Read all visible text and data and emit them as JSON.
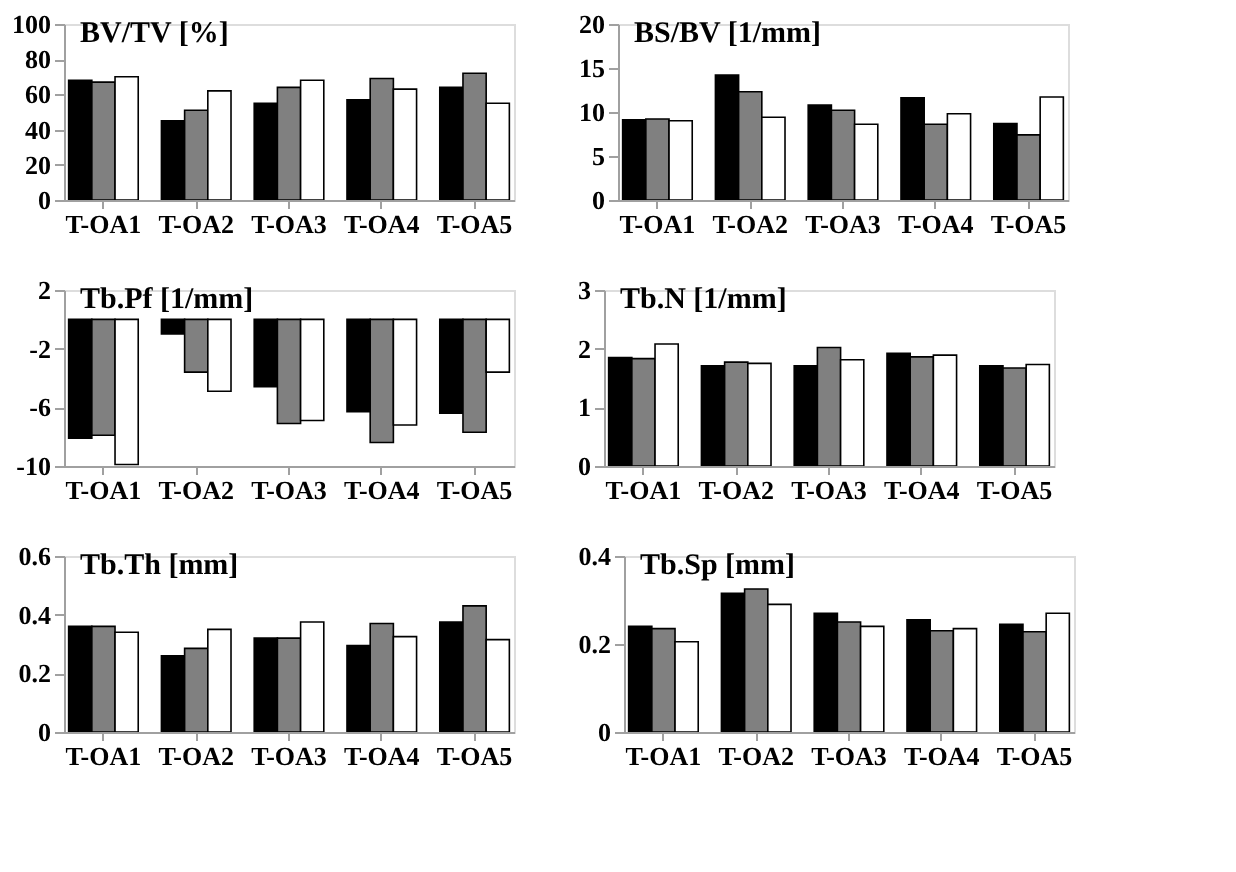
{
  "chart_data": [
    {
      "type": "bar",
      "title": "BV/TV [%]",
      "categories": [
        "T-OA1",
        "T-OA2",
        "T-OA3",
        "T-OA4",
        "T-OA5"
      ],
      "ylim": [
        0,
        100
      ],
      "yticks": [
        0,
        20,
        40,
        60,
        80,
        100
      ],
      "grid": false,
      "legend": false,
      "series": [
        {
          "color": "#000000",
          "values": [
            68,
            45,
            55,
            57,
            64
          ]
        },
        {
          "color": "#808080",
          "values": [
            67,
            51,
            64,
            69,
            72
          ]
        },
        {
          "color": "#ffffff",
          "values": [
            70,
            62,
            68,
            63,
            55
          ]
        }
      ]
    },
    {
      "type": "bar",
      "title": "BS/BV [1/mm]",
      "categories": [
        "T-OA1",
        "T-OA2",
        "T-OA3",
        "T-OA4",
        "T-OA5"
      ],
      "ylim": [
        0,
        20
      ],
      "yticks": [
        0,
        5,
        10,
        15,
        20
      ],
      "grid": false,
      "legend": false,
      "series": [
        {
          "color": "#000000",
          "values": [
            9.1,
            14.2,
            10.8,
            11.6,
            8.7
          ]
        },
        {
          "color": "#808080",
          "values": [
            9.2,
            12.3,
            10.2,
            8.6,
            7.4
          ]
        },
        {
          "color": "#ffffff",
          "values": [
            9.0,
            9.4,
            8.6,
            9.8,
            11.7
          ]
        }
      ]
    },
    {
      "type": "bar",
      "title": "Tb.Pf [1/mm]",
      "categories": [
        "T-OA1",
        "T-OA2",
        "T-OA3",
        "T-OA4",
        "T-OA5"
      ],
      "ylim": [
        -10,
        2
      ],
      "yticks": [
        -10,
        -6,
        -2,
        2
      ],
      "grid": false,
      "legend": false,
      "series": [
        {
          "color": "#000000",
          "values": [
            -8.1,
            -1.0,
            -4.6,
            -6.3,
            -6.4
          ]
        },
        {
          "color": "#808080",
          "values": [
            -7.9,
            -3.6,
            -7.1,
            -8.4,
            -7.7
          ]
        },
        {
          "color": "#ffffff",
          "values": [
            -9.9,
            -4.9,
            -6.9,
            -7.2,
            -3.6
          ]
        }
      ]
    },
    {
      "type": "bar",
      "title": "Tb.N [1/mm]",
      "categories": [
        "T-OA1",
        "T-OA2",
        "T-OA3",
        "T-OA4",
        "T-OA5"
      ],
      "ylim": [
        0,
        3
      ],
      "yticks": [
        0,
        1,
        2,
        3
      ],
      "grid": false,
      "legend": false,
      "series": [
        {
          "color": "#000000",
          "values": [
            1.85,
            1.71,
            1.71,
            1.92,
            1.71
          ]
        },
        {
          "color": "#808080",
          "values": [
            1.83,
            1.77,
            2.02,
            1.86,
            1.67
          ]
        },
        {
          "color": "#ffffff",
          "values": [
            2.08,
            1.75,
            1.81,
            1.89,
            1.73
          ]
        }
      ]
    },
    {
      "type": "bar",
      "title": "Tb.Th [mm]",
      "categories": [
        "T-OA1",
        "T-OA2",
        "T-OA3",
        "T-OA4",
        "T-OA5"
      ],
      "ylim": [
        0,
        0.6
      ],
      "yticks": [
        0,
        0.2,
        0.4,
        0.6
      ],
      "grid": false,
      "legend": false,
      "series": [
        {
          "color": "#000000",
          "values": [
            0.36,
            0.26,
            0.32,
            0.295,
            0.375
          ]
        },
        {
          "color": "#808080",
          "values": [
            0.36,
            0.285,
            0.32,
            0.37,
            0.43
          ]
        },
        {
          "color": "#ffffff",
          "values": [
            0.34,
            0.35,
            0.375,
            0.325,
            0.315
          ]
        }
      ]
    },
    {
      "type": "bar",
      "title": "Tb.Sp [mm]",
      "categories": [
        "T-OA1",
        "T-OA2",
        "T-OA3",
        "T-OA4",
        "T-OA5"
      ],
      "ylim": [
        0,
        0.4
      ],
      "yticks": [
        0,
        0.2,
        0.4
      ],
      "grid": false,
      "legend": false,
      "series": [
        {
          "color": "#000000",
          "values": [
            0.24,
            0.315,
            0.27,
            0.255,
            0.245
          ]
        },
        {
          "color": "#808080",
          "values": [
            0.235,
            0.325,
            0.25,
            0.23,
            0.228
          ]
        },
        {
          "color": "#ffffff",
          "values": [
            0.205,
            0.29,
            0.24,
            0.235,
            0.27
          ]
        }
      ]
    }
  ]
}
